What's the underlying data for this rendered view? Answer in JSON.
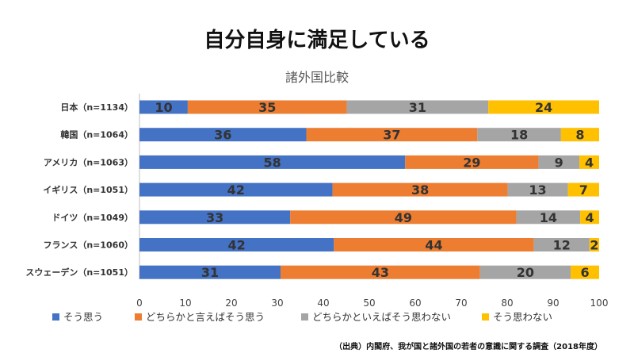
{
  "chart_data": {
    "type": "bar",
    "orientation": "horizontal",
    "stacked": true,
    "title": "自分自身に満足している",
    "subtitle": "諸外国比較",
    "categories": [
      "日本（n=1134）",
      "韓国（n=1064）",
      "アメリカ（n=1063）",
      "イギリス（n=1051）",
      "ドイツ（n=1049）",
      "フランス（n=1060）",
      "スウェーデン（n=1051）"
    ],
    "series": [
      {
        "name": "そう思う",
        "color": "#4472c4",
        "values": [
          10.5,
          36.3,
          57.8,
          42,
          32.8,
          42.3,
          30.7
        ]
      },
      {
        "name": "どちらかと言えばそう思う",
        "color": "#ed7d31",
        "values": [
          34.6,
          37.2,
          29,
          38.1,
          49.2,
          43.5,
          43.4
        ]
      },
      {
        "name": "どちらかといえばそう思わない",
        "color": "#a5a5a5",
        "values": [
          30.8,
          18.2,
          8.9,
          13.1,
          13.9,
          12.1,
          19.7
        ]
      },
      {
        "name": "そう思わない",
        "color": "#ffc000",
        "values": [
          24.1,
          8.3,
          4.3,
          6.8,
          4.1,
          2.1,
          6.2
        ]
      }
    ],
    "data_labels": [
      [
        "10",
        "35",
        "31",
        "24"
      ],
      [
        "36",
        "37",
        "18",
        "8"
      ],
      [
        "58",
        "29",
        "9",
        "4"
      ],
      [
        "42",
        "38",
        "13",
        "7"
      ],
      [
        "33",
        "49",
        "14",
        "4"
      ],
      [
        "42",
        "44",
        "12",
        "2"
      ],
      [
        "31",
        "43",
        "20",
        "6"
      ]
    ],
    "xlim": [
      0,
      100
    ],
    "xticks": [
      "0",
      "10",
      "20",
      "30",
      "40",
      "50",
      "60",
      "70",
      "80",
      "90",
      "100"
    ],
    "grid": false,
    "legend_position": "bottom"
  },
  "source": "（出典）内閣府、我が国と諸外国の若者の意識に関する調査（2018年度）"
}
